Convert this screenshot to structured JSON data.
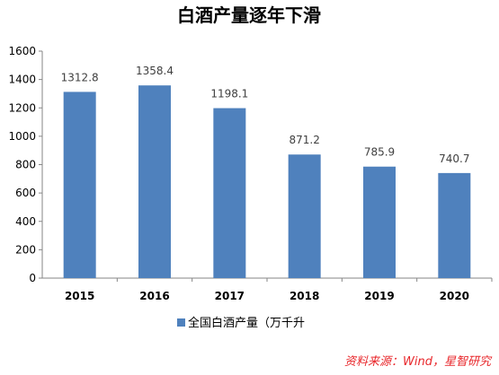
{
  "chart_data": {
    "type": "bar",
    "title": "白酒产量逐年下滑",
    "categories": [
      "2015",
      "2016",
      "2017",
      "2018",
      "2019",
      "2020"
    ],
    "series": [
      {
        "name": "全国白酒产量（万千升",
        "values": [
          1312.8,
          1358.4,
          1198.1,
          871.2,
          785.9,
          740.7
        ],
        "color": "#4f81bd"
      }
    ],
    "data_labels": [
      "1312.8",
      "1358.4",
      "1198.1",
      "871.2",
      "785.9",
      "740.7"
    ],
    "y_ticks": [
      "0",
      "200",
      "400",
      "600",
      "800",
      "1000",
      "1200",
      "1400",
      "1600"
    ],
    "ylim": [
      0,
      1600
    ],
    "grid": false,
    "legend_position": "bottom",
    "source": "资料来源：Wind，星智研究"
  }
}
